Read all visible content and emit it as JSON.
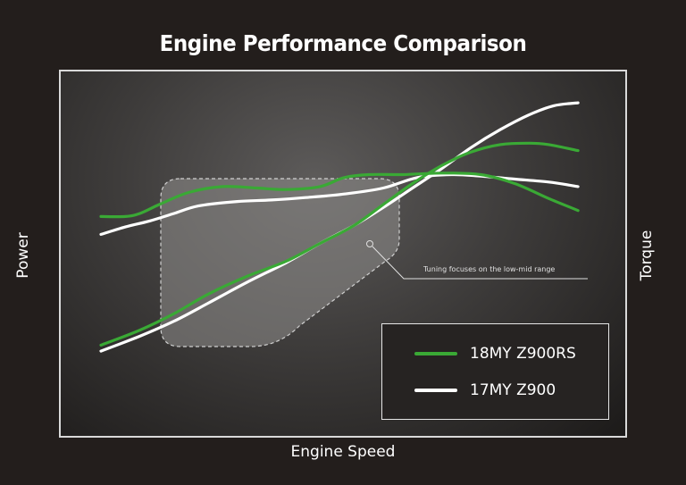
{
  "chart_data": {
    "type": "line",
    "title": "Engine Performance Comparison",
    "xlabel": "Engine Speed",
    "ylabel_left": "Power",
    "ylabel_right": "Torque",
    "xlim": [
      0,
      100
    ],
    "ylim": [
      0,
      100
    ],
    "grid": false,
    "legend_position": "bottom-right",
    "annotation": "Tuning focuses on the low-mid range",
    "colors": {
      "green": "#3aa935",
      "white": "#ffffff",
      "highlight": "#8f8e8d"
    },
    "series": [
      {
        "name": "18MY Z900RS",
        "metric": "torque",
        "color": "#3aa935",
        "x": [
          0,
          5,
          8,
          12,
          18,
          25,
          32,
          38,
          45,
          50,
          55,
          62,
          70,
          78,
          85,
          92,
          98
        ],
        "y": [
          59,
          59,
          60,
          63,
          67,
          69,
          68.5,
          68,
          69,
          72,
          73,
          73,
          73.5,
          73,
          70,
          65,
          61
        ]
      },
      {
        "name": "17MY Z900",
        "metric": "torque",
        "color": "#ffffff",
        "x": [
          0,
          5,
          10,
          15,
          20,
          28,
          35,
          42,
          50,
          58,
          65,
          72,
          78,
          85,
          92,
          98
        ],
        "y": [
          53,
          55.5,
          57.5,
          60,
          62.5,
          64,
          64.5,
          65.3,
          66.5,
          68.5,
          72,
          73,
          72.5,
          71.5,
          70.5,
          69
        ]
      },
      {
        "name": "18MY Z900RS",
        "metric": "power",
        "color": "#3aa935",
        "x": [
          0,
          8,
          15,
          22,
          30,
          38,
          45,
          52,
          58,
          64,
          70,
          76,
          82,
          88,
          92,
          98
        ],
        "y": [
          16,
          21,
          26.5,
          33,
          39,
          44,
          50,
          56,
          63,
          70,
          76,
          80.5,
          83,
          83.5,
          83,
          81
        ]
      },
      {
        "name": "17MY Z900",
        "metric": "power",
        "color": "#ffffff",
        "x": [
          0,
          8,
          15,
          22,
          30,
          38,
          45,
          52,
          58,
          64,
          70,
          76,
          82,
          88,
          93,
          98
        ],
        "y": [
          14,
          19,
          24,
          30,
          37,
          43.5,
          50,
          56,
          62,
          68.5,
          75,
          82,
          88,
          93,
          96,
          97
        ]
      }
    ],
    "legend": [
      {
        "label": "18MY Z900RS",
        "color": "#3aa935"
      },
      {
        "label": "17MY Z900",
        "color": "#ffffff"
      }
    ]
  }
}
